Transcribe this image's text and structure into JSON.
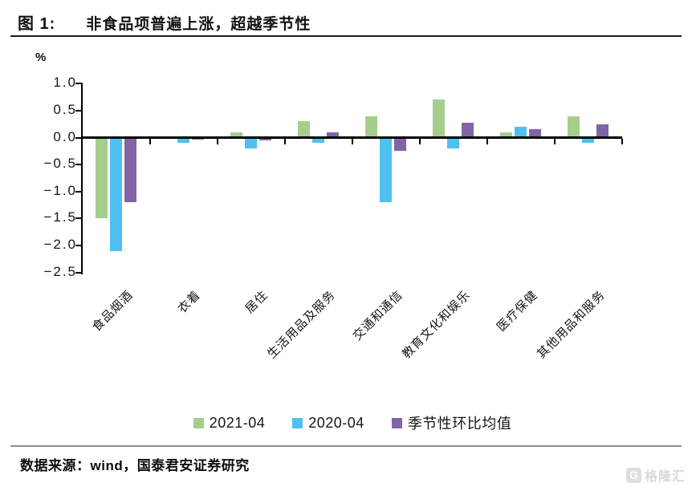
{
  "page": {
    "figure_label": "图 1:",
    "figure_title": "非食品项普遍上涨，超越季节性",
    "source_note": "数据来源：wind，国泰君安证券研究",
    "watermark_text": "格隆汇",
    "watermark_icon": "G"
  },
  "chart_data": {
    "type": "bar",
    "title": "非食品项普遍上涨，超越季节性",
    "unit_label": "%",
    "categories": [
      "食品烟酒",
      "衣着",
      "居住",
      "生活用品及服务",
      "交通和通信",
      "教育文化和娱乐",
      "医疗保健",
      "其他用品和服务"
    ],
    "series": [
      {
        "name": "2021-04",
        "color": "#a5ce8d",
        "values": [
          -1.5,
          0,
          0.1,
          0.3,
          0.4,
          0.7,
          0.1,
          0.4
        ]
      },
      {
        "name": "2020-04",
        "color": "#4ec1f0",
        "values": [
          -2.1,
          -0.1,
          -0.2,
          -0.1,
          -1.2,
          -0.2,
          0.2,
          -0.1
        ]
      },
      {
        "name": "季节性环比均值",
        "color": "#8064a5",
        "values": [
          -1.2,
          -0.03,
          -0.05,
          0.1,
          -0.25,
          0.28,
          0.15,
          0.25
        ]
      }
    ],
    "ylim": [
      -2.5,
      1.0
    ],
    "ytick_step": 0.5,
    "ytick_labels": [
      "1.0",
      "0.5",
      "0.0",
      "−0.5",
      "−1.0",
      "−1.5",
      "−2.0",
      "−2.5"
    ],
    "grid": false,
    "legend_position": "bottom",
    "axis_color": "#000000"
  }
}
